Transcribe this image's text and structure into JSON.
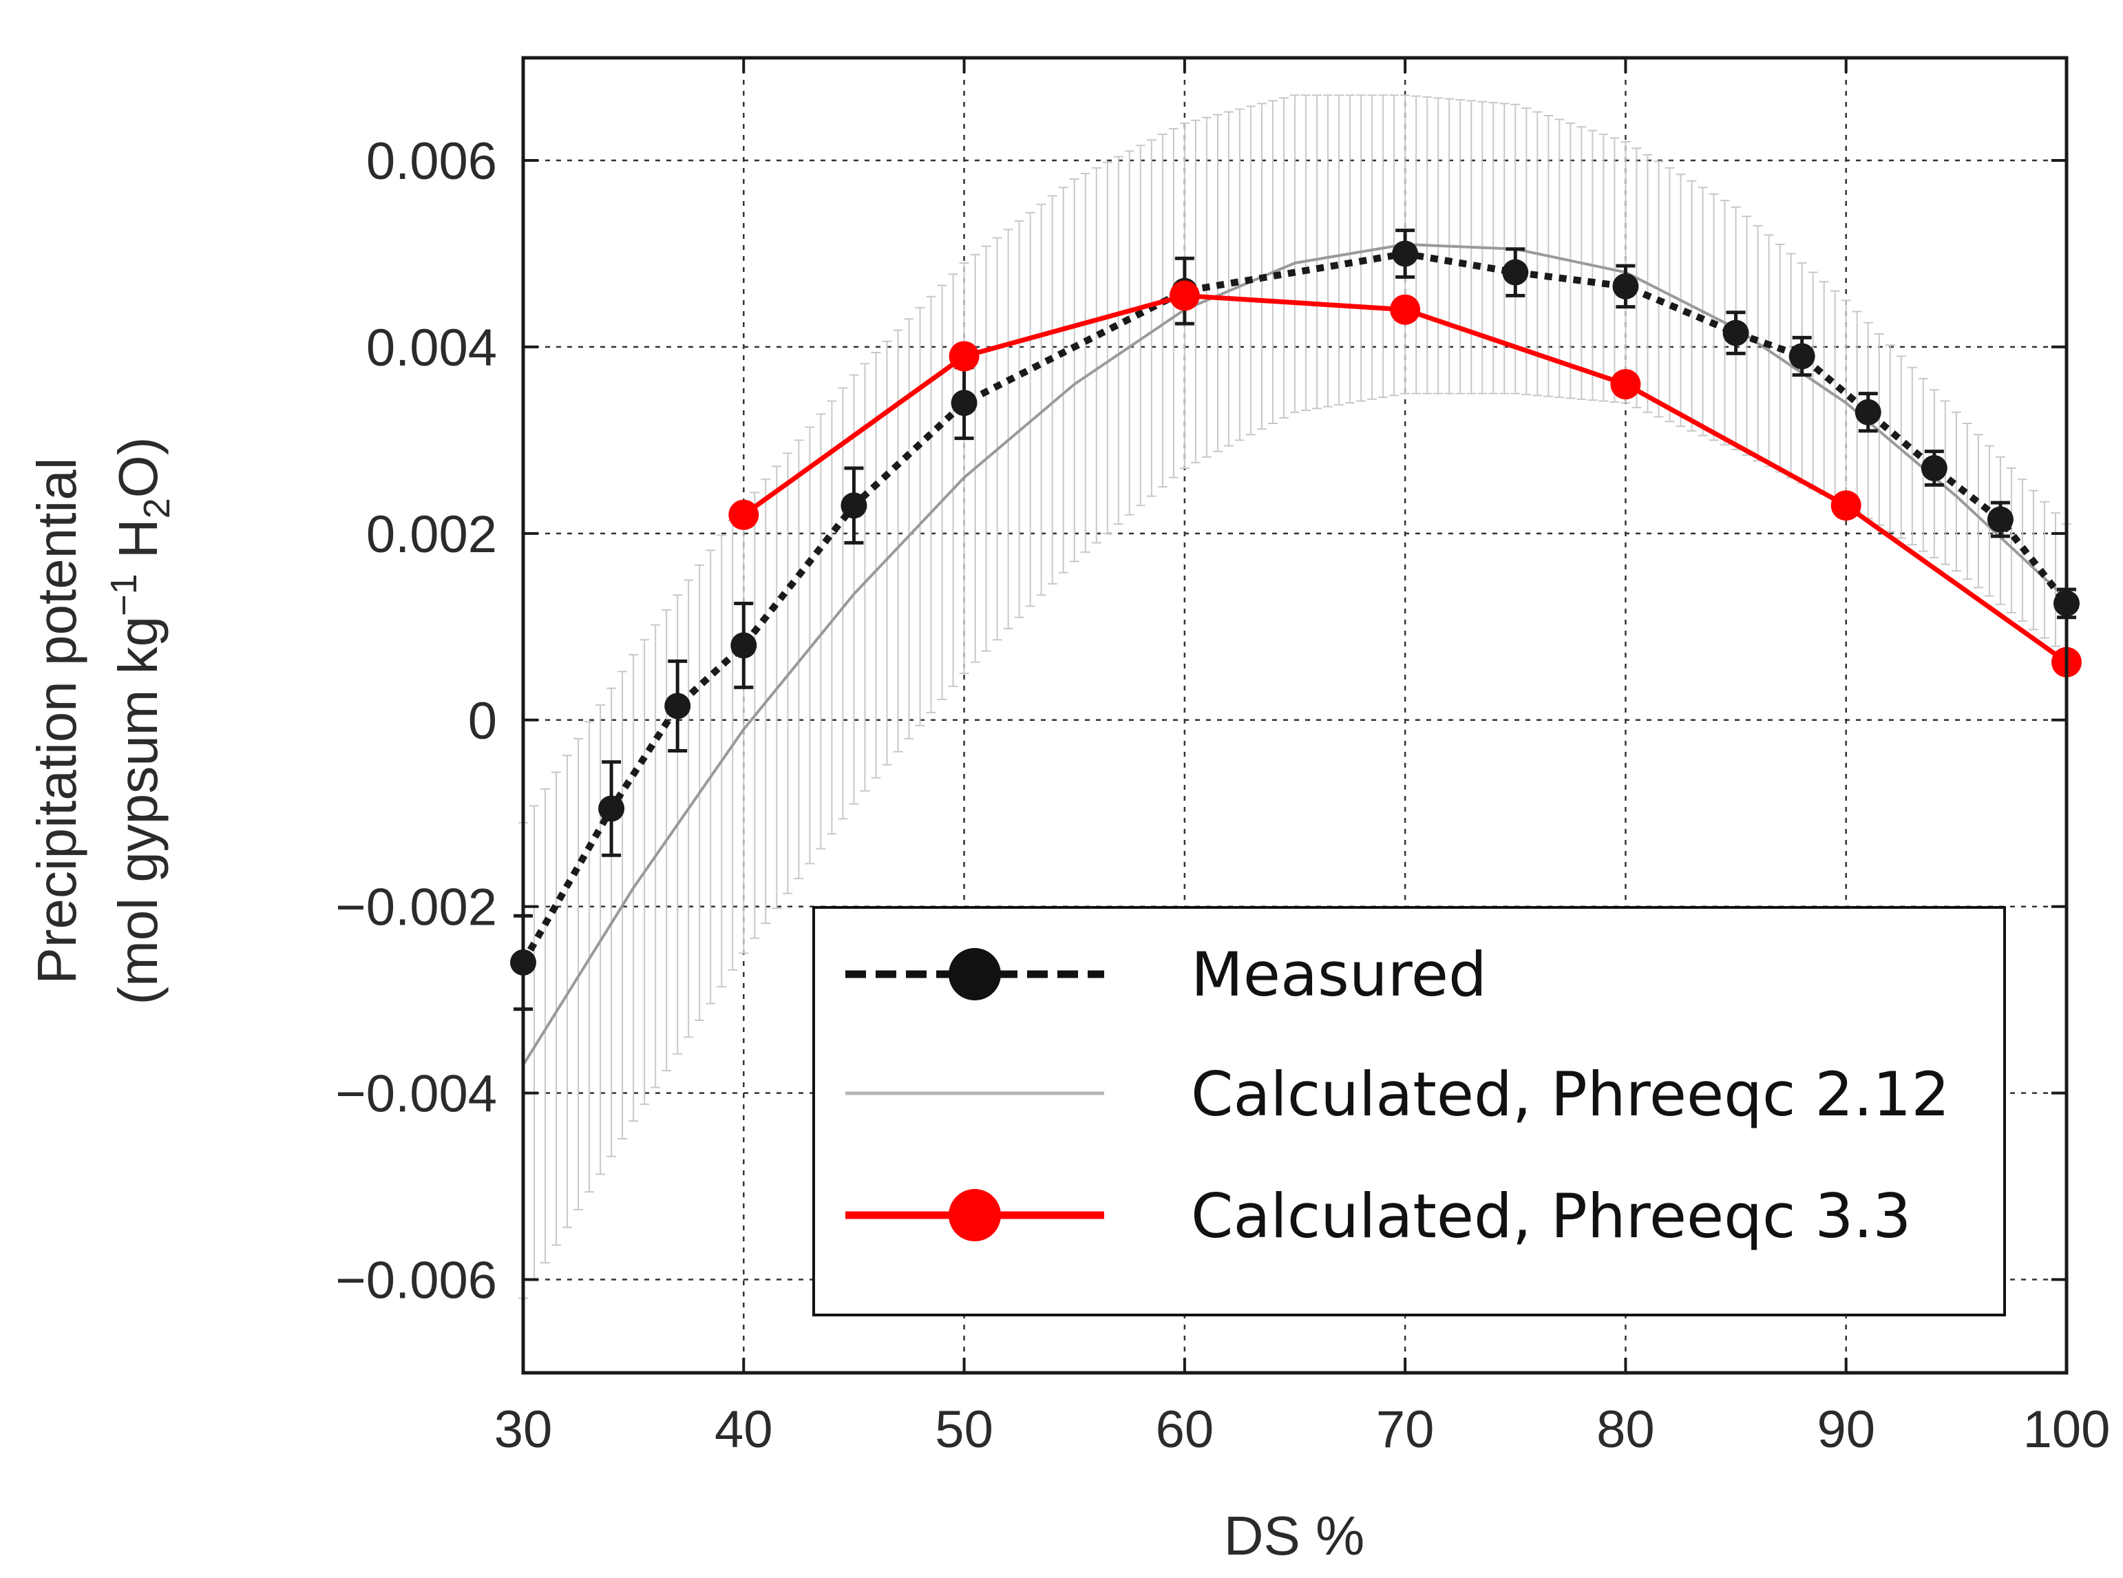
{
  "chart_data": {
    "type": "line",
    "title": "",
    "xlabel": "DS %",
    "ylabel_line1": "Precipitation potential",
    "ylabel_line2_prefix": "(mol gypsum kg",
    "ylabel_sup": "−1",
    "ylabel_mid": " H",
    "ylabel_sub": "2",
    "ylabel_suffix": "O)",
    "xlim": [
      30,
      100
    ],
    "ylim": [
      -0.007,
      0.0071
    ],
    "grid": true,
    "legend_position": "bottom-right",
    "x_ticks": [
      30,
      40,
      50,
      60,
      70,
      80,
      90,
      100
    ],
    "x_tick_labels": [
      "30",
      "40",
      "50",
      "60",
      "70",
      "80",
      "90",
      "100"
    ],
    "y_ticks": [
      -0.006,
      -0.004,
      -0.002,
      0,
      0.002,
      0.004,
      0.006
    ],
    "y_tick_labels": [
      "−0.006",
      "−0.004",
      "−0.002",
      "0",
      "0.002",
      "0.004",
      "0.006"
    ],
    "series": [
      {
        "name": "Measured",
        "style": "black-dotted-markers",
        "color": "#1a1a1a",
        "x": [
          30,
          34,
          37,
          40,
          45,
          50,
          60,
          70,
          75,
          80,
          85,
          88,
          91,
          94,
          97,
          100
        ],
        "y": [
          -0.0026,
          -0.00095,
          0.00015,
          0.0008,
          0.0023,
          0.0034,
          0.0046,
          0.005,
          0.0048,
          0.00465,
          0.00415,
          0.0039,
          0.0033,
          0.0027,
          0.00215,
          0.00125
        ],
        "err": [
          0.0005,
          0.0005,
          0.00048,
          0.00045,
          0.0004,
          0.00038,
          0.00035,
          0.00025,
          0.00025,
          0.00022,
          0.00022,
          0.0002,
          0.0002,
          0.00018,
          0.00018,
          0.00015
        ]
      },
      {
        "name": "Calculated, Phreeqc 2.12",
        "style": "gray-line-with-band",
        "color": "#9a9a9a",
        "band_color": "#c8c8c8",
        "x": [
          30,
          35,
          40,
          45,
          50,
          55,
          60,
          65,
          70,
          75,
          80,
          85,
          90,
          95,
          100
        ],
        "y": [
          -0.0037,
          -0.0018,
          -0.0001,
          0.00135,
          0.0026,
          0.0036,
          0.0044,
          0.0049,
          0.0051,
          0.00505,
          0.0048,
          0.0042,
          0.0034,
          0.0024,
          0.0013
        ],
        "band_lower": [
          -0.0062,
          -0.0043,
          -0.0025,
          -0.0009,
          0.0005,
          0.0017,
          0.0027,
          0.0033,
          0.0035,
          0.0035,
          0.0034,
          0.0029,
          0.0023,
          0.0016,
          0.0007
        ],
        "band_upper": [
          -0.0011,
          0.0007,
          0.0023,
          0.0037,
          0.0049,
          0.0058,
          0.0064,
          0.0067,
          0.0067,
          0.0066,
          0.0062,
          0.0055,
          0.0045,
          0.0033,
          0.0021
        ]
      },
      {
        "name": "Calculated, Phreeqc 3.3",
        "style": "red-line-markers",
        "color": "#ff0000",
        "x": [
          40,
          50,
          60,
          70,
          80,
          90,
          100
        ],
        "y": [
          0.0022,
          0.0039,
          0.00455,
          0.0044,
          0.0036,
          0.0023,
          0.00062
        ]
      }
    ]
  }
}
